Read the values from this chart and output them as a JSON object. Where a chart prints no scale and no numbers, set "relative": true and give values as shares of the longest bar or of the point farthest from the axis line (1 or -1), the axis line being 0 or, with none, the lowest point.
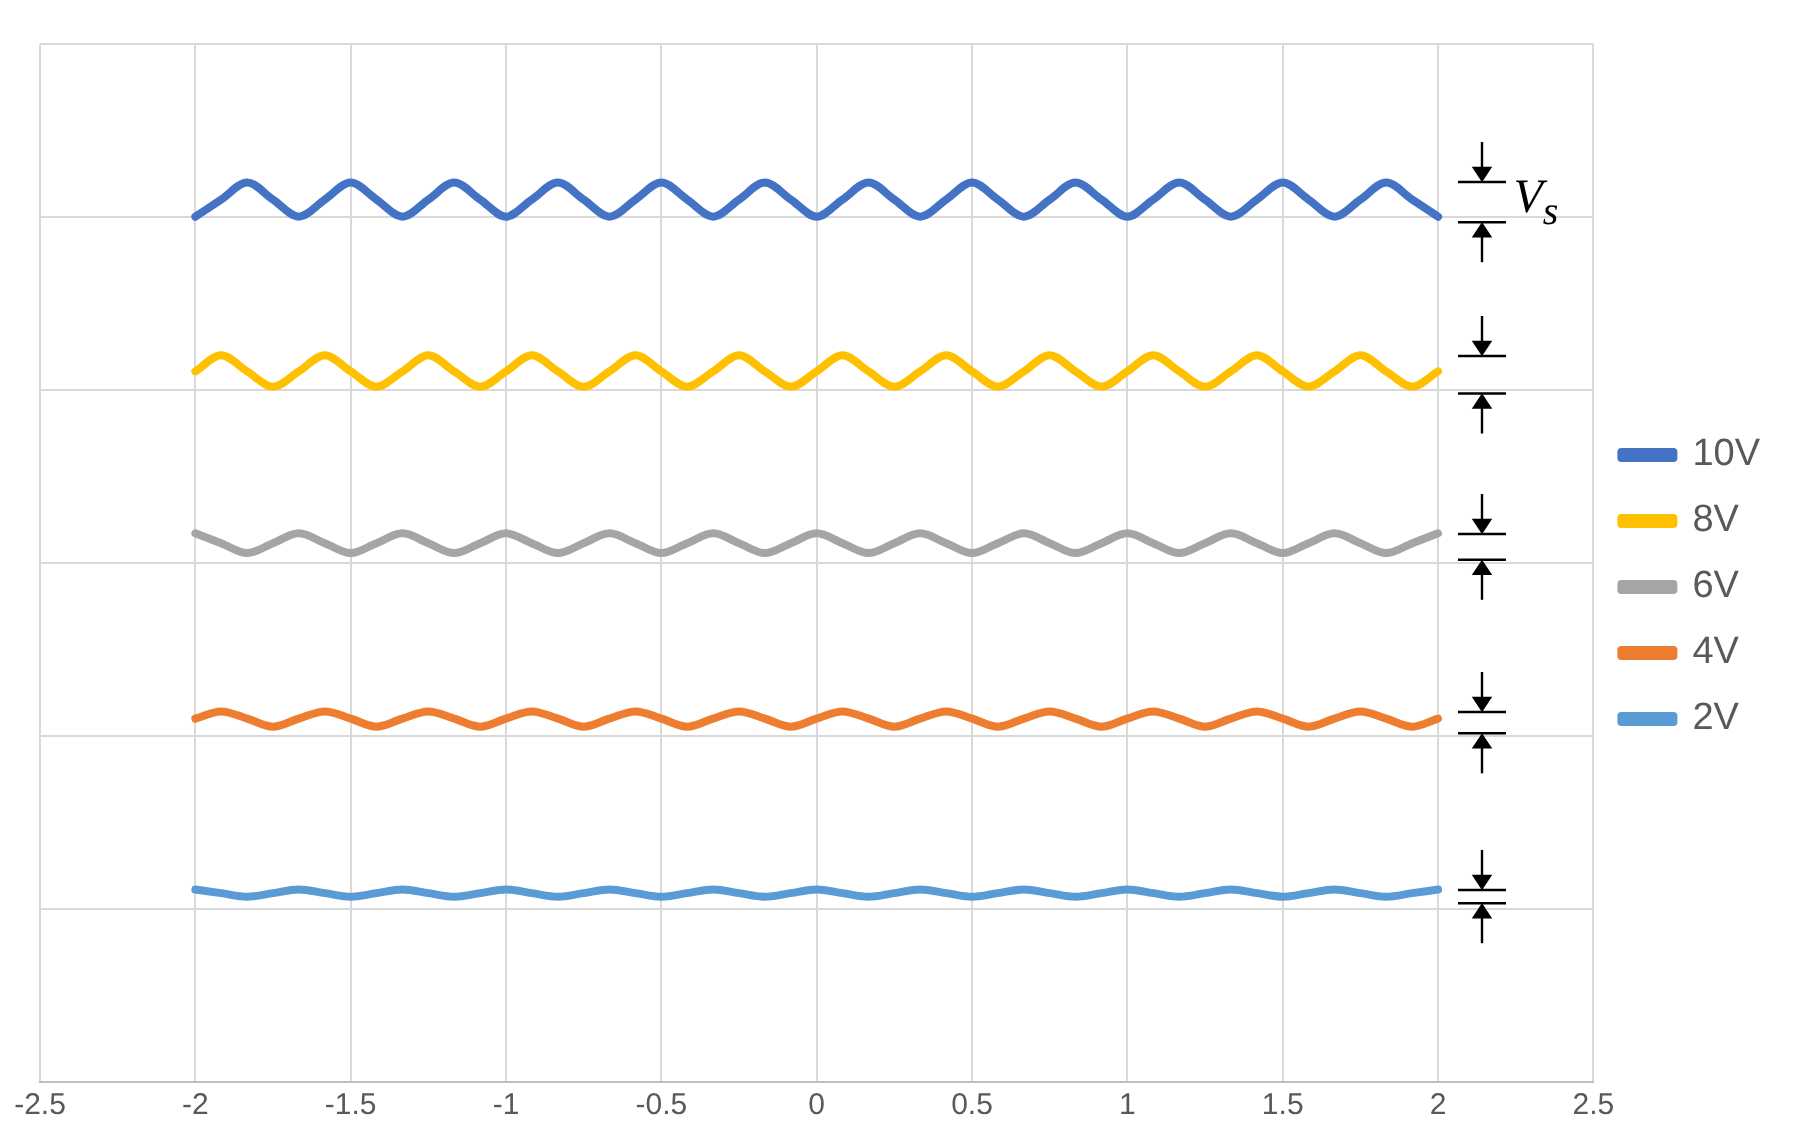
{
  "chart_data": {
    "type": "line",
    "relative": true,
    "grid": true,
    "legend": "right",
    "tick_labels": "x",
    "marker": "none",
    "line_style": "solid",
    "xlim": [
      -2.5,
      2.5
    ],
    "xticks": [
      -2.5,
      -2,
      -1.5,
      -1,
      -0.5,
      0,
      0.5,
      1,
      1.5,
      2,
      2.5
    ],
    "x": [
      -2,
      -1.917,
      -1.833,
      -1.75,
      -1.667,
      -1.583,
      -1.5,
      -1.417,
      -1.333,
      -1.25,
      -1.167,
      -1.083,
      -1,
      -0.917,
      -0.833,
      -0.75,
      -0.667,
      -0.583,
      -0.5,
      -0.417,
      -0.333,
      -0.25,
      -0.167,
      -0.083,
      0,
      0.083,
      0.167,
      0.25,
      0.333,
      0.417,
      0.5,
      0.583,
      0.667,
      0.75,
      0.833,
      0.917,
      1,
      1.083,
      1.167,
      1.25,
      1.333,
      1.417,
      1.5,
      1.583,
      1.667,
      1.75,
      1.833,
      1.917,
      2
    ],
    "series": [
      {
        "name": "10V",
        "color": "#4472c4",
        "values": [
          0.962,
          0.981,
          1,
          0.981,
          0.962,
          0.981,
          1,
          0.981,
          0.962,
          0.981,
          1,
          0.981,
          0.962,
          0.981,
          1,
          0.981,
          0.962,
          0.981,
          1,
          0.981,
          0.962,
          0.981,
          1,
          0.981,
          0.962,
          0.981,
          1,
          0.981,
          0.962,
          0.981,
          1,
          0.981,
          0.962,
          0.981,
          1,
          0.981,
          0.962,
          0.981,
          1,
          0.981,
          0.962,
          0.981,
          1,
          0.981,
          0.962,
          0.981,
          1,
          0.981,
          0.962
        ]
      },
      {
        "name": "8V",
        "color": "#ffc000",
        "values": [
          0.79,
          0.808,
          0.79,
          0.773,
          0.79,
          0.808,
          0.79,
          0.773,
          0.79,
          0.808,
          0.79,
          0.773,
          0.79,
          0.808,
          0.79,
          0.773,
          0.79,
          0.808,
          0.79,
          0.773,
          0.79,
          0.808,
          0.79,
          0.773,
          0.79,
          0.808,
          0.79,
          0.773,
          0.79,
          0.808,
          0.79,
          0.773,
          0.79,
          0.808,
          0.79,
          0.773,
          0.79,
          0.808,
          0.79,
          0.773,
          0.79,
          0.808,
          0.79,
          0.773,
          0.79,
          0.808,
          0.79,
          0.773,
          0.79
        ]
      },
      {
        "name": "6V",
        "color": "#a5a5a5",
        "values": [
          0.61,
          0.599,
          0.588,
          0.599,
          0.61,
          0.599,
          0.588,
          0.599,
          0.61,
          0.599,
          0.588,
          0.599,
          0.61,
          0.599,
          0.588,
          0.599,
          0.61,
          0.599,
          0.588,
          0.599,
          0.61,
          0.599,
          0.588,
          0.599,
          0.61,
          0.599,
          0.588,
          0.599,
          0.61,
          0.599,
          0.588,
          0.599,
          0.61,
          0.599,
          0.588,
          0.599,
          0.61,
          0.599,
          0.588,
          0.599,
          0.61,
          0.599,
          0.588,
          0.599,
          0.61,
          0.599,
          0.588,
          0.599,
          0.61
        ]
      },
      {
        "name": "4V",
        "color": "#ed7d31",
        "values": [
          0.404,
          0.412,
          0.404,
          0.395,
          0.404,
          0.412,
          0.404,
          0.395,
          0.404,
          0.412,
          0.404,
          0.395,
          0.404,
          0.412,
          0.404,
          0.395,
          0.404,
          0.412,
          0.404,
          0.395,
          0.404,
          0.412,
          0.404,
          0.395,
          0.404,
          0.412,
          0.404,
          0.395,
          0.404,
          0.412,
          0.404,
          0.395,
          0.404,
          0.412,
          0.404,
          0.395,
          0.404,
          0.412,
          0.404,
          0.395,
          0.404,
          0.412,
          0.404,
          0.395,
          0.404,
          0.412,
          0.404,
          0.395,
          0.404
        ]
      },
      {
        "name": "2V",
        "color": "#5b9bd5",
        "values": [
          0.214,
          0.21,
          0.206,
          0.21,
          0.214,
          0.21,
          0.206,
          0.21,
          0.214,
          0.21,
          0.206,
          0.21,
          0.214,
          0.21,
          0.206,
          0.21,
          0.214,
          0.21,
          0.206,
          0.21,
          0.214,
          0.21,
          0.206,
          0.21,
          0.214,
          0.21,
          0.206,
          0.21,
          0.214,
          0.21,
          0.206,
          0.21,
          0.214,
          0.21,
          0.206,
          0.21,
          0.214,
          0.21,
          0.206,
          0.21,
          0.214,
          0.21,
          0.206,
          0.21,
          0.214,
          0.21,
          0.206,
          0.21,
          0.214
        ]
      }
    ],
    "annotations": [
      "V$_{s}$"
    ]
  }
}
